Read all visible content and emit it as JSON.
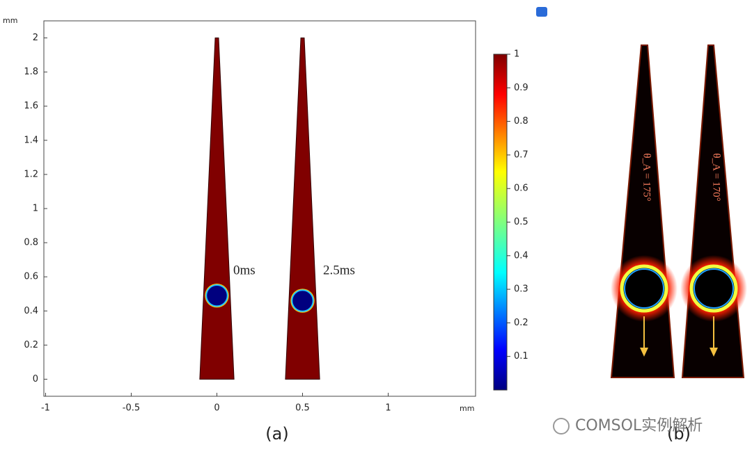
{
  "chart_data": {
    "type": "field",
    "x_unit": "mm",
    "y_unit": "mm",
    "xlim": [
      -1.01,
      1.51
    ],
    "ylim": [
      -0.1,
      2.1
    ],
    "xticks": [
      -1,
      -0.5,
      0,
      0.5,
      1
    ],
    "yticks": [
      0,
      0.2,
      0.4,
      0.6,
      0.8,
      1,
      1.2,
      1.4,
      1.6,
      1.8,
      2
    ],
    "wedges": [
      {
        "center": 0,
        "base_half_width": 0.1,
        "tip_half_width": 0.01,
        "height": 2
      },
      {
        "center": 0.5,
        "base_half_width": 0.1,
        "tip_half_width": 0.01,
        "height": 2
      }
    ],
    "bubbles": [
      {
        "cx": 0,
        "cy": 0.49,
        "r": 0.07,
        "label": "0ms"
      },
      {
        "cx": 0.5,
        "cy": 0.46,
        "r": 0.07,
        "label": "2.5ms"
      }
    ],
    "colorbar": {
      "lim": [
        0,
        1
      ],
      "ticks": [
        0.1,
        0.2,
        0.3,
        0.4,
        0.5,
        0.6,
        0.7,
        0.8,
        0.9,
        1
      ]
    },
    "caption": "(a)"
  },
  "panel_b": {
    "caption": "(b)",
    "annotations": [
      "θ_A = 175°",
      "θ_A = 170°"
    ]
  },
  "watermark": "COMSOL实例解析"
}
